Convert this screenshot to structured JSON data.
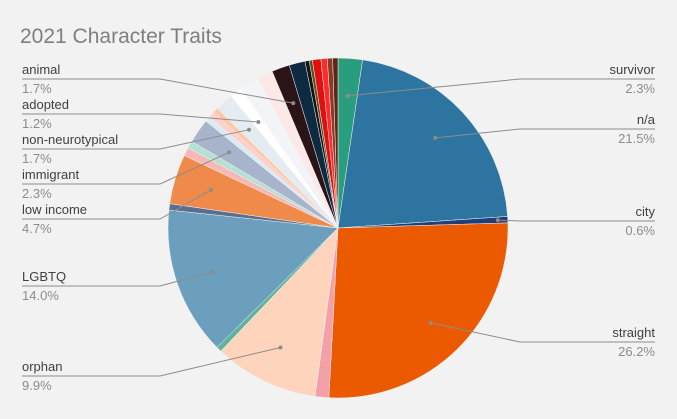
{
  "chart_data": {
    "type": "pie",
    "title": "2021 Character Traits",
    "categories": [
      "survivor",
      "n/a",
      "city",
      "straight",
      null,
      "orphan",
      null,
      "LGBTQ",
      null,
      "low income",
      null,
      null,
      "immigrant",
      null,
      null,
      null,
      "non-neurotypical",
      "adopted",
      null,
      null,
      "animal",
      null,
      null,
      null,
      null,
      null,
      null,
      null
    ],
    "values": [
      2.3,
      21.5,
      0.6,
      26.2,
      1.3,
      9.9,
      0.5,
      14.0,
      0.6,
      4.7,
      0.8,
      0.7,
      2.3,
      0.5,
      0.6,
      0.5,
      1.7,
      1.2,
      1.8,
      1.5,
      1.7,
      1.5,
      0.4,
      0.3,
      0.8,
      0.6,
      0.5,
      0.5
    ],
    "value_labels": [
      "2.3%",
      "21.5%",
      "0.6%",
      "26.2%",
      null,
      "9.9%",
      null,
      "14.0%",
      null,
      "4.7%",
      null,
      null,
      "2.3%",
      null,
      null,
      null,
      "1.7%",
      "1.2%",
      null,
      null,
      "1.7%",
      null,
      null,
      null,
      null,
      null,
      null,
      null
    ],
    "colors": [
      "#2a9d7f",
      "#2e74a0",
      "#1f3f78",
      "#eb5a00",
      "#f4a0a8",
      "#ffd4bc",
      "#5fb39a",
      "#6b9fbd",
      "#5a6f8f",
      "#f08a4b",
      "#f7b8b8",
      "#b5e0d4",
      "#a8b4cc",
      "#d6eef0",
      "#ffd0d0",
      "#ffc9a8",
      "#e4ecf2",
      "#ffffff",
      "#f2f4f8",
      "#fde8e8",
      "#2a1418",
      "#0d2a40",
      "#141414",
      "#5a5020",
      "#e01010",
      "#ff2a2a",
      "#8a3a28",
      "#5a2818"
    ]
  }
}
